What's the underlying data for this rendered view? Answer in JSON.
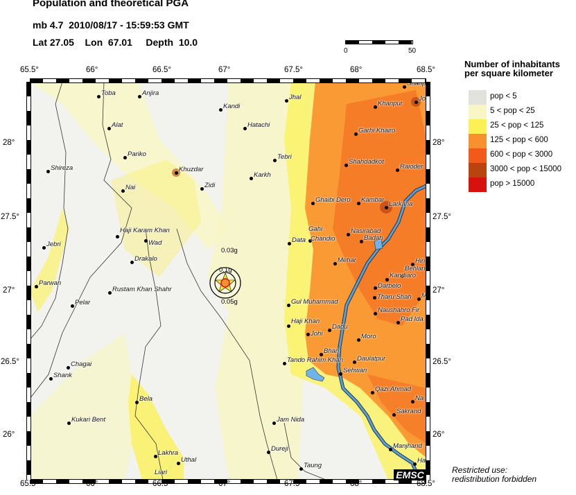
{
  "header": {
    "title": "Population and theoretical PGA",
    "event": "mb 4.7  2010/08/17 - 15:59:53 GMT",
    "location": "Lat 27.05    Lon  67.01     Depth  10.0"
  },
  "scale": {
    "min_label": "0",
    "max_label": "50"
  },
  "axes": {
    "lon_ticks": [
      "65.5°",
      "66°",
      "66.5°",
      "67°",
      "67.5°",
      "68°",
      "68.5°"
    ],
    "lat_ticks": [
      "28°",
      "27.5°",
      "27°",
      "26.5°",
      "26°"
    ]
  },
  "legend": {
    "title_line1": "Number of inhabitants",
    "title_line2": "per square kilometer",
    "items": [
      {
        "label": "pop < 5",
        "color": "#e2e2dc"
      },
      {
        "label": "5 < pop < 25",
        "color": "#f8f6c4"
      },
      {
        "label": "25 < pop < 125",
        "color": "#fbf157"
      },
      {
        "label": "125 < pop < 600",
        "color": "#f8902e"
      },
      {
        "label": "600 < pop < 3000",
        "color": "#f15a18"
      },
      {
        "label": "3000 < pop < 15000",
        "color": "#b9440f"
      },
      {
        "label": "pop > 15000",
        "color": "#d7120d"
      }
    ]
  },
  "epicenter": {
    "pga_labels": [
      "0.03g",
      "0.1g",
      "0.05g"
    ],
    "star_color": "#f5e93a"
  },
  "cities": [
    "Toba",
    "Anjira",
    "Kandi",
    "Jhal",
    "Alat",
    "Hatachi",
    "Pariko",
    "Tebri",
    "Shireza",
    "Khuzdar",
    "Zidi",
    "Karkh",
    "Nai",
    "Ghaibi Dero",
    "Kambar",
    "Larkana",
    "Shahpu",
    "Jo",
    "Khanpur",
    "Garhi Khairo",
    "Shahdadkot",
    "Raioder",
    "Haji Karam Khan",
    "Wad",
    "Jebri",
    "Data",
    "Gahi",
    "Chandio",
    "Nasirabad",
    "Badah",
    "Mehar",
    "Hin",
    "Drakalo",
    "Parwan",
    "Rustam Khan Shahr",
    "Pelar",
    "Behlan",
    "Kandiaro",
    "Darbelo",
    "Tharu Shah",
    "M",
    "Gul Muhammad",
    "Naushahro Fir",
    "Pad Ida",
    "Haji Khan",
    "Johi",
    "Dadu",
    "Moro",
    "Bhan",
    "Tando Rahim Khan",
    "Daulatpur",
    "Sehwan",
    "Chagai",
    "Shank",
    "Qazi Ahmad",
    "Na",
    "Bela",
    "Sakrand",
    "Kukari Bent",
    "Jam Nida",
    "Lakhra",
    "Uthal",
    "Dureji",
    "Manjhand",
    "Taung",
    "Liari",
    "Ha"
  ],
  "colors": {
    "river": "#5aa0d8",
    "water": "#6fb3ea"
  },
  "footer": {
    "brand": "EMSC",
    "restricted_line1": "Restricted use:",
    "restricted_line2": "redistribution forbidden"
  }
}
